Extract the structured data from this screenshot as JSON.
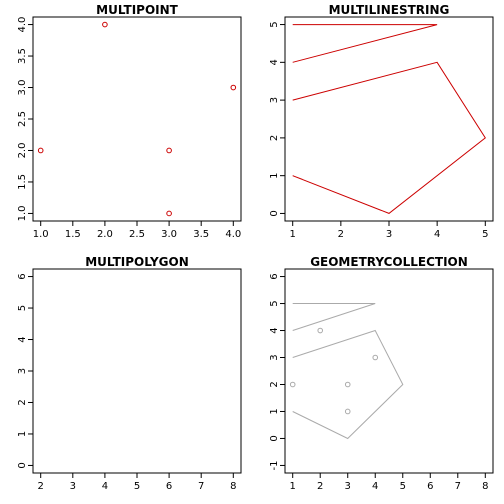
{
  "chart_data": [
    {
      "type": "scatter",
      "title": "MULTIPOINT",
      "xlim": [
        1,
        4
      ],
      "ylim": [
        1,
        4
      ],
      "xticks": [
        1.0,
        1.5,
        2.0,
        2.5,
        3.0,
        3.5,
        4.0
      ],
      "xtick_labels": [
        "1.0",
        "1.5",
        "2.0",
        "2.5",
        "3.0",
        "3.5",
        "4.0"
      ],
      "yticks": [
        1.0,
        1.5,
        2.0,
        2.5,
        3.0,
        3.5,
        4.0
      ],
      "ytick_labels": [
        "1.0",
        "1.5",
        "2.0",
        "2.5",
        "3.0",
        "3.5",
        "4.0"
      ],
      "color": "#cc0000",
      "points": [
        [
          1,
          2
        ],
        [
          2,
          4
        ],
        [
          3,
          2
        ],
        [
          3,
          1
        ],
        [
          4,
          3
        ]
      ]
    },
    {
      "type": "line",
      "title": "MULTILINESTRING",
      "xlim": [
        1,
        5
      ],
      "ylim": [
        0,
        5
      ],
      "xticks": [
        1,
        2,
        3,
        4,
        5
      ],
      "xtick_labels": [
        "1",
        "2",
        "3",
        "4",
        "5"
      ],
      "yticks": [
        0,
        1,
        2,
        3,
        4,
        5
      ],
      "ytick_labels": [
        "0",
        "1",
        "2",
        "3",
        "4",
        "5"
      ],
      "color": "#cc0000",
      "lines": [
        [
          [
            1,
            5
          ],
          [
            4,
            5
          ],
          [
            1,
            4
          ]
        ],
        [
          [
            1,
            3
          ],
          [
            4,
            4
          ],
          [
            5,
            2
          ],
          [
            3,
            0
          ],
          [
            1,
            1
          ],
          [
            1.2,
            0.9
          ]
        ]
      ]
    },
    {
      "type": "polygon",
      "title": "MULTIPOLYGON",
      "xlim": [
        2,
        8
      ],
      "ylim": [
        0,
        6
      ],
      "xticks": [
        2,
        3,
        4,
        5,
        6,
        7,
        8
      ],
      "xtick_labels": [
        "2",
        "3",
        "4",
        "5",
        "6",
        "7",
        "8"
      ],
      "yticks": [
        0,
        1,
        2,
        3,
        4,
        5,
        6
      ],
      "ytick_labels": [
        "0",
        "1",
        "2",
        "3",
        "4",
        "5",
        "6"
      ],
      "polygons": []
    },
    {
      "type": "geometrycollection",
      "title": "GEOMETRYCOLLECTION",
      "xlim": [
        1,
        8
      ],
      "ylim": [
        -1,
        6
      ],
      "xticks": [
        1,
        2,
        3,
        4,
        5,
        6,
        7,
        8
      ],
      "xtick_labels": [
        "1",
        "2",
        "3",
        "4",
        "5",
        "6",
        "7",
        "8"
      ],
      "yticks": [
        -1,
        0,
        1,
        2,
        3,
        4,
        5,
        6
      ],
      "ytick_labels": [
        "-1",
        "0",
        "1",
        "2",
        "3",
        "4",
        "5",
        "6"
      ],
      "color": "#aaaaaa",
      "points": [
        [
          1,
          2
        ],
        [
          2,
          4
        ],
        [
          3,
          2
        ],
        [
          3,
          1
        ],
        [
          4,
          3
        ]
      ],
      "lines": [
        [
          [
            1,
            5
          ],
          [
            4,
            5
          ],
          [
            1,
            4
          ]
        ],
        [
          [
            1,
            3
          ],
          [
            4,
            4
          ],
          [
            5,
            2
          ],
          [
            3,
            0
          ],
          [
            1,
            1
          ]
        ]
      ]
    }
  ]
}
